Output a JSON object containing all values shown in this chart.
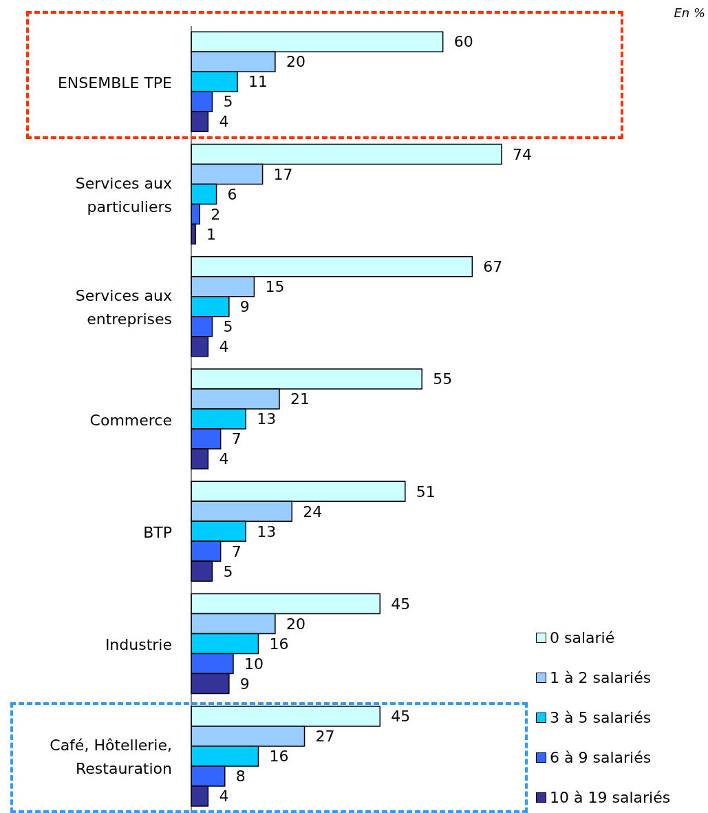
{
  "chart_data": {
    "type": "bar",
    "orientation": "horizontal",
    "categories": [
      "ENSEMBLE TPE",
      "Services aux particuliers",
      "Services aux entreprises",
      "Commerce",
      "BTP",
      "Industrie",
      "Café, Hôtellerie, Restauration"
    ],
    "series": [
      {
        "name": "0 salarié",
        "color": "#ccffff",
        "values": [
          60,
          74,
          67,
          55,
          51,
          45,
          45
        ]
      },
      {
        "name": "1 à 2 salariés",
        "color": "#99ccff",
        "values": [
          20,
          17,
          15,
          21,
          24,
          20,
          27
        ]
      },
      {
        "name": "3 à 5 salariés",
        "color": "#00ccff",
        "values": [
          11,
          6,
          9,
          13,
          13,
          16,
          16
        ]
      },
      {
        "name": "6 à 9 salariés",
        "color": "#3366ff",
        "values": [
          5,
          2,
          5,
          7,
          7,
          10,
          8
        ]
      },
      {
        "name": "10 à 19 salariés",
        "color": "#333399",
        "values": [
          4,
          1,
          4,
          4,
          5,
          9,
          4
        ]
      }
    ],
    "data_labels": true,
    "legend": "bottom right",
    "grid": false,
    "annotations": [
      "En %"
    ]
  }
}
